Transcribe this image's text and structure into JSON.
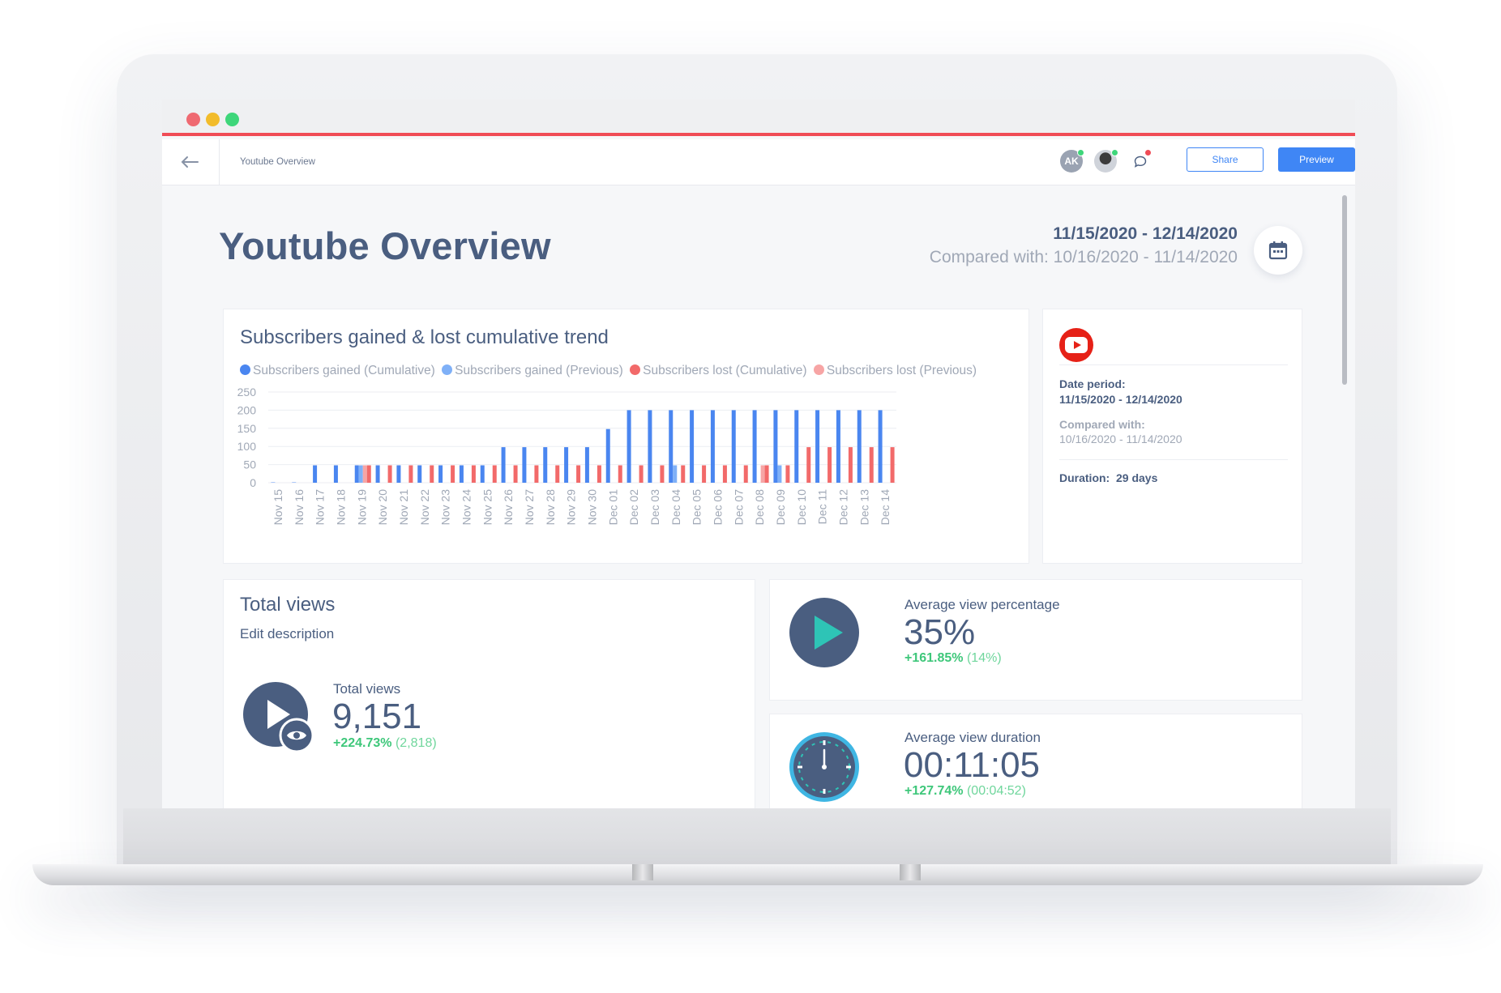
{
  "browser": {
    "breadcrumb": "Youtube Overview",
    "back_icon": "arrow-left-icon",
    "accent_color": "#f04c56"
  },
  "header": {
    "avatar_initials": "AK",
    "chat_icon": "chat-bubble-icon",
    "share_label": "Share",
    "preview_label": "Preview",
    "primary_color": "#3f86f5"
  },
  "page": {
    "title": "Youtube Overview",
    "date_range": "11/15/2020 - 12/14/2020",
    "compare_range": "Compared with: 10/16/2020 - 11/14/2020",
    "calendar_icon": "calendar-icon"
  },
  "chart_data": {
    "type": "bar",
    "title": "Subscribers gained & lost cumulative trend",
    "categories": [
      "Nov 15",
      "Nov 16",
      "Nov 17",
      "Nov 18",
      "Nov 19",
      "Nov 20",
      "Nov 21",
      "Nov 22",
      "Nov 23",
      "Nov 24",
      "Nov 25",
      "Nov 26",
      "Nov 27",
      "Nov 28",
      "Nov 29",
      "Nov 30",
      "Dec 01",
      "Dec 02",
      "Dec 03",
      "Dec 04",
      "Dec 05",
      "Dec 06",
      "Dec 07",
      "Dec 08",
      "Dec 09",
      "Dec 10",
      "Dec 11",
      "Dec 12",
      "Dec 13",
      "Dec 14"
    ],
    "series": [
      {
        "name": "Subscribers gained (Cumulative)",
        "color": "#4a86f0",
        "values": [
          1,
          1,
          48,
          48,
          48,
          48,
          48,
          48,
          48,
          48,
          48,
          98,
          98,
          98,
          98,
          98,
          148,
          200,
          200,
          200,
          200,
          200,
          200,
          200,
          200,
          200,
          200,
          200,
          200,
          200
        ]
      },
      {
        "name": "Subscribers gained (Previous)",
        "color": "#7fb0f7",
        "values": [
          0,
          0,
          0,
          0,
          48,
          0,
          0,
          0,
          0,
          0,
          0,
          0,
          0,
          0,
          0,
          0,
          0,
          0,
          0,
          48,
          0,
          0,
          0,
          0,
          48,
          0,
          0,
          0,
          0,
          0
        ]
      },
      {
        "name": "Subscribers lost (Cumulative)",
        "color": "#f26a6a",
        "values": [
          0,
          0,
          0,
          0,
          48,
          48,
          48,
          48,
          48,
          48,
          48,
          48,
          48,
          48,
          48,
          48,
          48,
          48,
          48,
          48,
          48,
          48,
          48,
          48,
          48,
          98,
          98,
          98,
          98,
          98
        ]
      },
      {
        "name": "Subscribers lost (Previous)",
        "color": "#f7a5a5",
        "values": [
          0,
          0,
          0,
          0,
          48,
          0,
          0,
          0,
          0,
          0,
          0,
          0,
          0,
          0,
          0,
          0,
          0,
          0,
          0,
          0,
          0,
          0,
          0,
          48,
          0,
          0,
          0,
          0,
          0,
          0
        ]
      }
    ],
    "yticks": [
      0,
      50,
      100,
      150,
      200,
      250
    ],
    "ylim": [
      0,
      250
    ],
    "xlabel": "",
    "ylabel": "",
    "grid": true,
    "legend_position": "top-left"
  },
  "info_card": {
    "logo_icon": "youtube-logo-icon",
    "date_period_label": "Date period:",
    "date_period_value": "11/15/2020 - 12/14/2020",
    "compared_label": "Compared with:",
    "compared_value": "10/16/2020 - 11/14/2020",
    "duration_label": "Duration:",
    "duration_value": "29 days"
  },
  "total_views_card": {
    "title": "Total views",
    "description": "Edit description",
    "icon": "play-eye-icon",
    "metric_label": "Total views",
    "value": "9,151",
    "change": "+224.73%",
    "previous": "(2,818)"
  },
  "avg_view_pct_card": {
    "icon": "play-icon",
    "metric_label": "Average view percentage",
    "value": "35%",
    "change": "+161.85%",
    "previous": "(14%)"
  },
  "avg_view_duration_card": {
    "icon": "stopwatch-icon",
    "metric_label": "Average view duration",
    "value": "00:11:05",
    "change": "+127.74%",
    "previous": "(00:04:52)"
  },
  "colors": {
    "text": "#4a5e80",
    "muted": "#a0a8b6",
    "positive": "#3ec77a",
    "icon_bg": "#4a5e80",
    "teal": "#2ec4b6"
  }
}
